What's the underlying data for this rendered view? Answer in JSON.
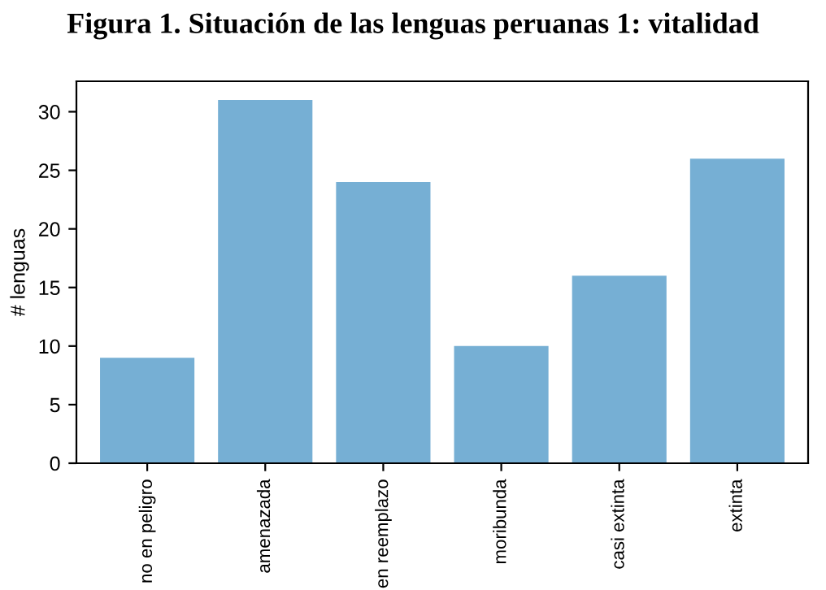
{
  "chart_data": {
    "type": "bar",
    "title": "Figura 1. Situación de las lenguas peruanas 1: vitalidad",
    "ylabel": "# lenguas",
    "categories": [
      "no en peligro",
      "amenazada",
      "en reemplazo",
      "moribunda",
      "casi extinta",
      "extinta"
    ],
    "values": [
      9,
      31,
      24,
      10,
      16,
      26
    ],
    "color": "#76afd4",
    "ylim": [
      0,
      32.6
    ],
    "yticks": [
      0,
      5,
      10,
      15,
      20,
      25,
      30
    ],
    "grid": false
  }
}
